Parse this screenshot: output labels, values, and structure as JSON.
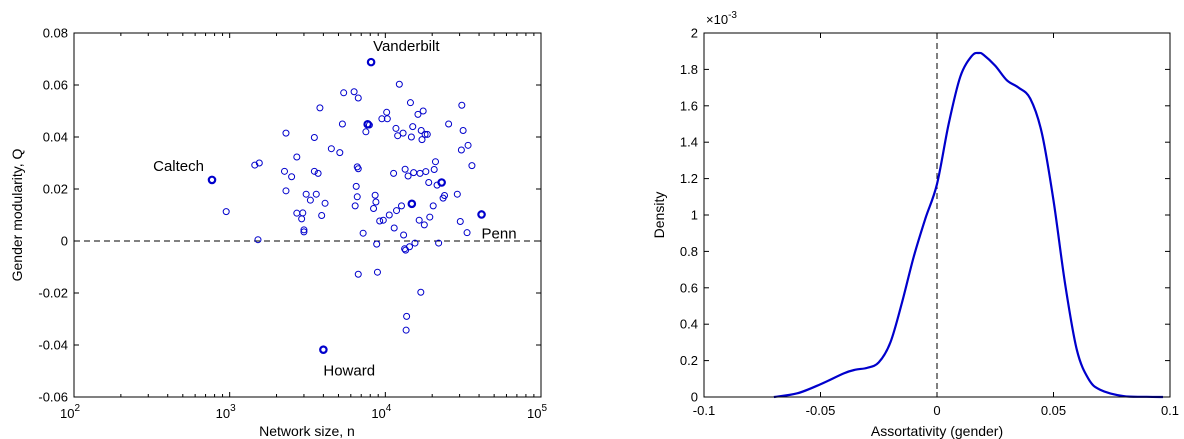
{
  "colors": {
    "series": "#0000cc",
    "axis": "#000000",
    "zero_line": "#000000"
  },
  "chart_data": [
    {
      "type": "scatter",
      "xlabel": "Network size, n",
      "ylabel": "Gender modularity, Q",
      "x_scale": "log",
      "xlim": [
        100,
        100000
      ],
      "ylim": [
        -0.06,
        0.08
      ],
      "x_ticks": [
        100,
        1000,
        10000,
        100000
      ],
      "x_tick_labels": [
        {
          "base": "10",
          "exp": "2"
        },
        {
          "base": "10",
          "exp": "3"
        },
        {
          "base": "10",
          "exp": "4"
        },
        {
          "base": "10",
          "exp": "5"
        }
      ],
      "y_ticks": [
        -0.06,
        -0.04,
        -0.02,
        0,
        0.02,
        0.04,
        0.06,
        0.08
      ],
      "y_tick_labels": [
        "-0.06",
        "-0.04",
        "-0.02",
        "0",
        "0.02",
        "0.04",
        "0.06",
        "0.08"
      ],
      "reference_line": {
        "y": 0,
        "style": "dashed"
      },
      "grid": false,
      "annotations": [
        {
          "label": "Vanderbilt",
          "x": 8100,
          "y": 0.0688
        },
        {
          "label": "Caltech",
          "x": 770,
          "y": 0.0235
        },
        {
          "label": "Penn",
          "x": 41500,
          "y": 0.0102
        },
        {
          "label": "Howard",
          "x": 4000,
          "y": -0.0418
        }
      ],
      "highlighted_points": [
        {
          "x": 8100,
          "y": 0.0688
        },
        {
          "x": 770,
          "y": 0.0235
        },
        {
          "x": 41500,
          "y": 0.0102
        },
        {
          "x": 4000,
          "y": -0.0418
        },
        {
          "x": 7700,
          "y": 0.0449
        },
        {
          "x": 14800,
          "y": 0.0143
        },
        {
          "x": 23000,
          "y": 0.0225
        }
      ],
      "points": [
        [
          950,
          0.0113
        ],
        [
          1450,
          0.0292
        ],
        [
          1550,
          0.03
        ],
        [
          1520,
          0.0005
        ],
        [
          2300,
          0.0415
        ],
        [
          2250,
          0.0268
        ],
        [
          2300,
          0.0193
        ],
        [
          2500,
          0.0247
        ],
        [
          2700,
          0.0323
        ],
        [
          2700,
          0.0107
        ],
        [
          2900,
          0.0085
        ],
        [
          2950,
          0.0108
        ],
        [
          3000,
          0.0043
        ],
        [
          3000,
          0.0035
        ],
        [
          3100,
          0.018
        ],
        [
          3300,
          0.0157
        ],
        [
          3500,
          0.0398
        ],
        [
          3500,
          0.0268
        ],
        [
          3600,
          0.018
        ],
        [
          3700,
          0.026
        ],
        [
          3800,
          0.0512
        ],
        [
          3900,
          0.0098
        ],
        [
          4100,
          0.0145
        ],
        [
          4500,
          0.0355
        ],
        [
          5100,
          0.034
        ],
        [
          5300,
          0.045
        ],
        [
          5400,
          0.057
        ],
        [
          6300,
          0.0574
        ],
        [
          6400,
          0.0135
        ],
        [
          6500,
          0.021
        ],
        [
          6600,
          0.017
        ],
        [
          6600,
          0.0285
        ],
        [
          6700,
          0.0278
        ],
        [
          6700,
          0.055
        ],
        [
          6700,
          -0.0128
        ],
        [
          7200,
          0.003
        ],
        [
          7500,
          0.042
        ],
        [
          7900,
          0.0446
        ],
        [
          8400,
          0.0125
        ],
        [
          8600,
          0.0176
        ],
        [
          8700,
          0.015
        ],
        [
          8800,
          -0.0012
        ],
        [
          8900,
          -0.012
        ],
        [
          9200,
          0.0077
        ],
        [
          9500,
          0.047
        ],
        [
          9700,
          0.008
        ],
        [
          10200,
          0.0495
        ],
        [
          10300,
          0.047
        ],
        [
          10600,
          0.01
        ],
        [
          11300,
          0.026
        ],
        [
          11400,
          0.005
        ],
        [
          11700,
          0.0433
        ],
        [
          11800,
          0.0117
        ],
        [
          12000,
          0.0405
        ],
        [
          12300,
          0.0603
        ],
        [
          12700,
          0.0135
        ],
        [
          13000,
          0.0415
        ],
        [
          13100,
          0.0023
        ],
        [
          13300,
          -0.003
        ],
        [
          13400,
          0.0276
        ],
        [
          13500,
          -0.0035
        ],
        [
          13600,
          -0.0343
        ],
        [
          13700,
          -0.029
        ],
        [
          14000,
          0.025
        ],
        [
          14300,
          -0.0022
        ],
        [
          14500,
          0.0532
        ],
        [
          14700,
          0.04
        ],
        [
          15000,
          0.044
        ],
        [
          15200,
          0.0263
        ],
        [
          15500,
          -0.0008
        ],
        [
          16200,
          0.0487
        ],
        [
          16500,
          0.008
        ],
        [
          16700,
          0.026
        ],
        [
          16900,
          -0.0197
        ],
        [
          17000,
          0.0425
        ],
        [
          17200,
          0.039
        ],
        [
          17500,
          0.05
        ],
        [
          17800,
          0.0062
        ],
        [
          18000,
          0.041
        ],
        [
          18200,
          0.0267
        ],
        [
          18600,
          0.041
        ],
        [
          19000,
          0.0225
        ],
        [
          19300,
          0.0092
        ],
        [
          20300,
          0.0135
        ],
        [
          20600,
          0.0275
        ],
        [
          21000,
          0.0305
        ],
        [
          21500,
          0.0215
        ],
        [
          22000,
          -0.0008
        ],
        [
          23500,
          0.0165
        ],
        [
          24000,
          0.0175
        ],
        [
          25500,
          0.045
        ],
        [
          29000,
          0.018
        ],
        [
          30300,
          0.0075
        ],
        [
          30800,
          0.035
        ],
        [
          31000,
          0.0522
        ],
        [
          31600,
          0.0425
        ],
        [
          33500,
          0.0032
        ],
        [
          34000,
          0.0368
        ],
        [
          36000,
          0.029
        ]
      ]
    },
    {
      "type": "line",
      "xlabel": "Assortativity (gender)",
      "ylabel": "Density",
      "y_multiplier": "×10",
      "y_multiplier_exp": "-3",
      "xlim": [
        -0.1,
        0.1
      ],
      "ylim": [
        0,
        2
      ],
      "x_ticks": [
        -0.1,
        -0.05,
        0,
        0.05,
        0.1
      ],
      "x_tick_labels": [
        "-0.1",
        "-0.05",
        "0",
        "0.05",
        "0.1"
      ],
      "y_ticks": [
        0,
        0.2,
        0.4,
        0.6,
        0.8,
        1,
        1.2,
        1.4,
        1.6,
        1.8,
        2
      ],
      "y_tick_labels": [
        "0",
        "0.2",
        "0.4",
        "0.6",
        "0.8",
        "1",
        "1.2",
        "1.4",
        "1.6",
        "1.8",
        "2"
      ],
      "reference_line": {
        "x": 0,
        "style": "dashed"
      },
      "grid": false,
      "series": [
        {
          "x": [
            -0.07,
            -0.06,
            -0.05,
            -0.04,
            -0.035,
            -0.03,
            -0.025,
            -0.02,
            -0.015,
            -0.01,
            -0.005,
            0,
            0.005,
            0.01,
            0.015,
            0.018,
            0.02,
            0.025,
            0.03,
            0.035,
            0.04,
            0.045,
            0.05,
            0.055,
            0.06,
            0.065,
            0.07,
            0.08,
            0.09,
            0.097
          ],
          "y": [
            0,
            0.02,
            0.07,
            0.13,
            0.15,
            0.16,
            0.19,
            0.3,
            0.52,
            0.77,
            0.98,
            1.17,
            1.5,
            1.76,
            1.875,
            1.89,
            1.88,
            1.82,
            1.74,
            1.7,
            1.64,
            1.45,
            1.08,
            0.62,
            0.26,
            0.1,
            0.04,
            0.005,
            0.001,
            0
          ]
        }
      ]
    }
  ]
}
